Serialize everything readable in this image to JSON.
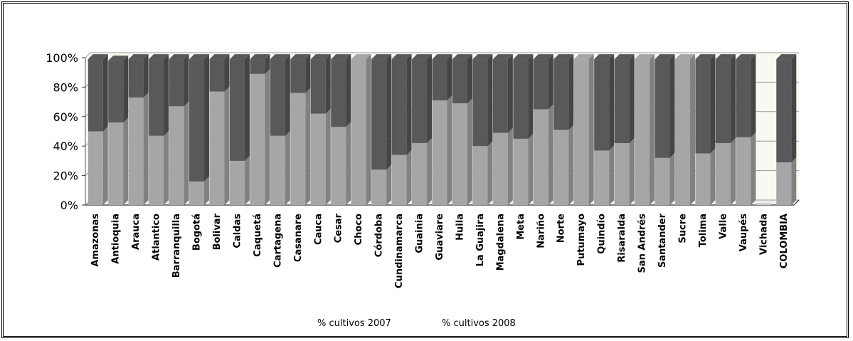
{
  "chart_data": {
    "type": "bar",
    "stacked": true,
    "percent_stacked": true,
    "three_d": true,
    "categories": [
      "Amazonas",
      "Antioquia",
      "Arauca",
      "Atlantico",
      "Barranquilla",
      "Bogotá",
      "Bolivar",
      "Caldas",
      "Caquetá",
      "Cartagena",
      "Casanare",
      "Cauca",
      "Cesar",
      "Choco",
      "Córdoba",
      "Cundinamarca",
      "Guainia",
      "Guaviare",
      "Huila",
      "La Guajira",
      "Magdalena",
      "Meta",
      "Nariño",
      "Norte",
      "Putumayo",
      "Quindío",
      "Risaralda",
      "San Andrés",
      "Santander",
      "Sucre",
      "Tolima",
      "Valle",
      "Vaupés",
      "Vichada",
      "COLOMBIA"
    ],
    "series": [
      {
        "name": "% cultivos 2007",
        "color": "#a6a6a6",
        "values": [
          50,
          56,
          73,
          47,
          67,
          16,
          77,
          30,
          89,
          47,
          76,
          62,
          53,
          99,
          24,
          34,
          42,
          71,
          69,
          40,
          49,
          45,
          65,
          51,
          99,
          37,
          42,
          99,
          32,
          99,
          35,
          42,
          46,
          0,
          29
        ]
      },
      {
        "name": "% cultivos 2008",
        "color": "#595959",
        "values": [
          49,
          42,
          26,
          52,
          32,
          83,
          22,
          69,
          10,
          52,
          23,
          37,
          46,
          0,
          75,
          65,
          57,
          28,
          30,
          59,
          50,
          54,
          34,
          48,
          0,
          62,
          57,
          0,
          67,
          0,
          64,
          57,
          53,
          0,
          70
        ]
      }
    ],
    "title": "",
    "xlabel": "",
    "ylabel": "",
    "ylim": [
      0,
      100
    ],
    "y_ticks": [
      "0%",
      "20%",
      "40%",
      "60%",
      "80%",
      "100%"
    ],
    "grid": true,
    "legend_position": "bottom"
  }
}
